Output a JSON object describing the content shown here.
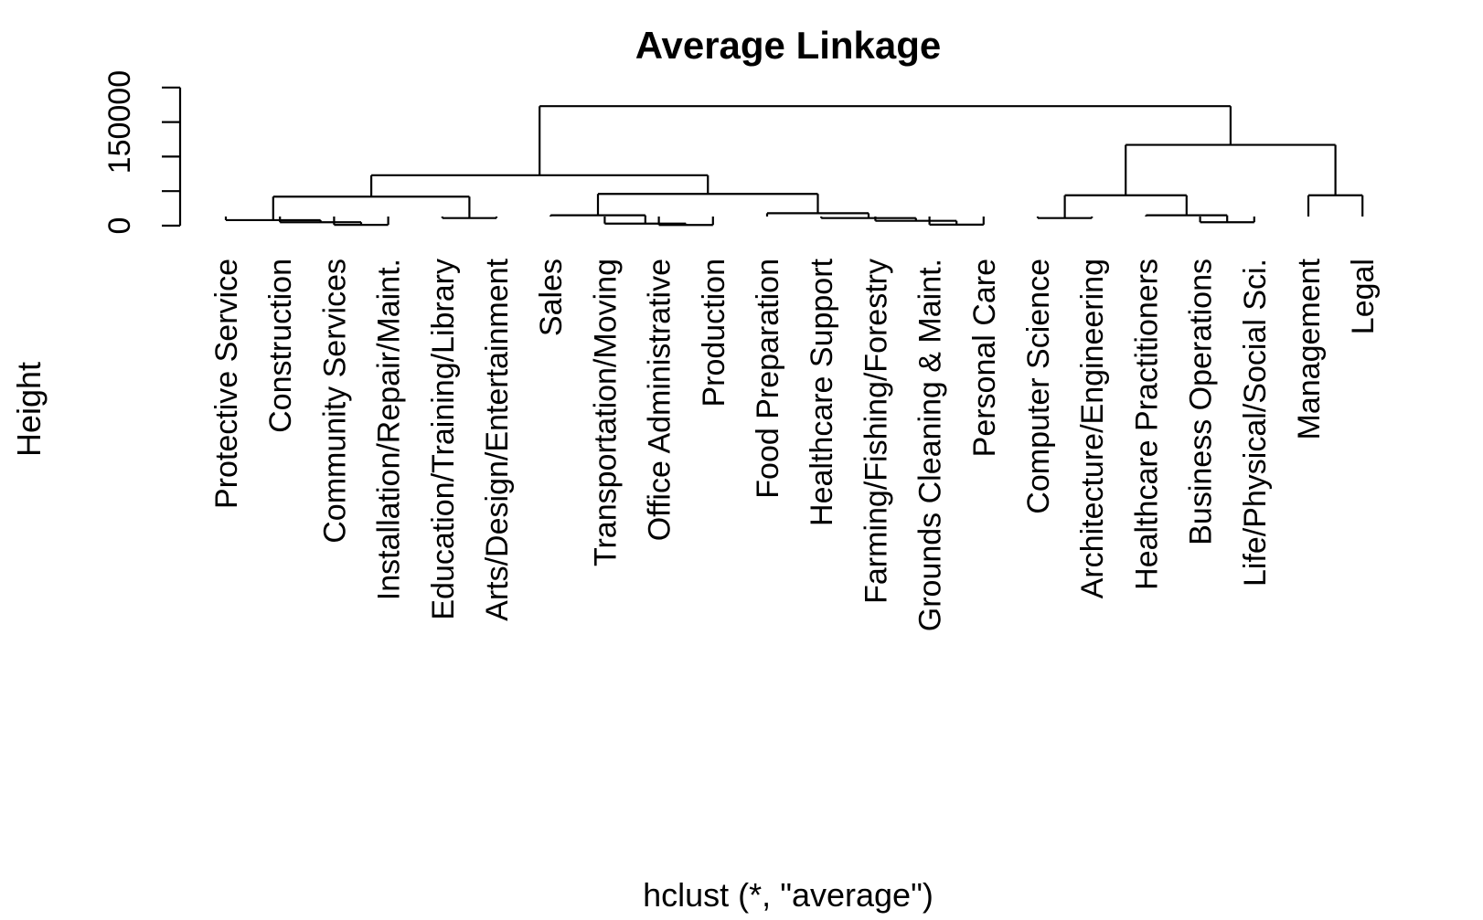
{
  "chart_data": {
    "type": "dendrogram",
    "title": "Average Linkage",
    "xlabel": "hclust (*, \"average\")",
    "ylabel": "Height",
    "yticks": [
      {
        "value": 0,
        "label": "0"
      },
      {
        "value": 50000,
        "label": ""
      },
      {
        "value": 100000,
        "label": ""
      },
      {
        "value": 150000,
        "label": "150000"
      },
      {
        "value": 200000,
        "label": ""
      }
    ],
    "ylim": [
      0,
      210000
    ],
    "leaves": [
      "Protective Service",
      "Construction",
      "Community Services",
      "Installation/Repair/Maint.",
      "Education/Training/Library",
      "Arts/Design/Entertainment",
      "Sales",
      "Transportation/Moving",
      "Office Administrative",
      "Production",
      "Food Preparation",
      "Healthcare Support",
      "Farming/Fishing/Forestry",
      "Grounds Cleaning & Maint.",
      "Personal Care",
      "Computer Science",
      "Architecture/Engineering",
      "Healthcare Practitioners",
      "Business Operations",
      "Life/Physical/Social Sci.",
      "Management",
      "Legal"
    ],
    "merges": [
      {
        "id": "m1",
        "left": "Installation/Repair/Maint.",
        "right": "Community Services",
        "height": 1200
      },
      {
        "id": "m2",
        "left": "Construction",
        "right": "m1",
        "height": 5000
      },
      {
        "id": "m3",
        "left": "Protective Service",
        "right": "m2",
        "height": 8000
      },
      {
        "id": "m4",
        "left": "Education/Training/Library",
        "right": "Arts/Design/Entertainment",
        "height": 11000
      },
      {
        "id": "m5",
        "left": "m3",
        "right": "m4",
        "height": 42000
      },
      {
        "id": "m6",
        "left": "Office Administrative",
        "right": "Production",
        "height": 1000
      },
      {
        "id": "m7",
        "left": "Transportation/Moving",
        "right": "m6",
        "height": 3000
      },
      {
        "id": "m8",
        "left": "Sales",
        "right": "m7",
        "height": 15000
      },
      {
        "id": "m9",
        "left": "Grounds Cleaning & Maint.",
        "right": "Personal Care",
        "height": 1500
      },
      {
        "id": "m10",
        "left": "Farming/Fishing/Forestry",
        "right": "m9",
        "height": 7000
      },
      {
        "id": "m11",
        "left": "Healthcare Support",
        "right": "m10",
        "height": 11000
      },
      {
        "id": "m12",
        "left": "Food Preparation",
        "right": "m11",
        "height": 18000
      },
      {
        "id": "m13",
        "left": "m8",
        "right": "m12",
        "height": 46000
      },
      {
        "id": "m14",
        "left": "m5",
        "right": "m13",
        "height": 73000
      },
      {
        "id": "m15",
        "left": "Computer Science",
        "right": "Architecture/Engineering",
        "height": 11000
      },
      {
        "id": "m16",
        "left": "Business Operations",
        "right": "Life/Physical/Social Sci.",
        "height": 5000
      },
      {
        "id": "m17",
        "left": "Healthcare Practitioners",
        "right": "m16",
        "height": 15000
      },
      {
        "id": "m18",
        "left": "m15",
        "right": "m17",
        "height": 44000
      },
      {
        "id": "m19",
        "left": "Management",
        "right": "Legal",
        "height": 44000
      },
      {
        "id": "m20",
        "left": "m18",
        "right": "m19",
        "height": 117000
      },
      {
        "id": "m21",
        "left": "m14",
        "right": "m20",
        "height": 173000
      }
    ]
  }
}
